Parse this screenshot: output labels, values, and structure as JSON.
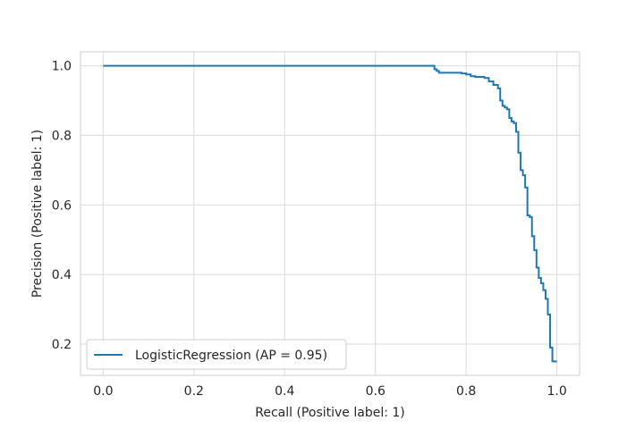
{
  "chart_data": {
    "type": "line",
    "title": "",
    "xlabel": "Recall (Positive label: 1)",
    "ylabel": "Precision (Positive label: 1)",
    "xlim": [
      -0.05,
      1.05
    ],
    "ylim": [
      0.11,
      1.04
    ],
    "xticks": [
      0.0,
      0.2,
      0.4,
      0.6,
      0.8,
      1.0
    ],
    "xtick_labels": [
      "0.0",
      "0.2",
      "0.4",
      "0.6",
      "0.8",
      "1.0"
    ],
    "yticks": [
      0.2,
      0.4,
      0.6,
      0.8,
      1.0
    ],
    "ytick_labels": [
      "0.2",
      "0.4",
      "0.6",
      "0.8",
      "1.0"
    ],
    "grid": true,
    "legend_position": "lower-left",
    "series": [
      {
        "name": "LogisticRegression (AP = 0.95)",
        "color": "#1f77b4",
        "drawstyle": "steps-post",
        "x": [
          0.0,
          0.73,
          0.735,
          0.74,
          0.79,
          0.8,
          0.81,
          0.82,
          0.84,
          0.85,
          0.86,
          0.87,
          0.875,
          0.88,
          0.885,
          0.89,
          0.895,
          0.9,
          0.905,
          0.91,
          0.915,
          0.92,
          0.925,
          0.93,
          0.935,
          0.94,
          0.945,
          0.95,
          0.955,
          0.96,
          0.965,
          0.97,
          0.975,
          0.98,
          0.985,
          0.99,
          0.995,
          1.0
        ],
        "y": [
          1.0,
          0.99,
          0.985,
          0.98,
          0.978,
          0.975,
          0.97,
          0.968,
          0.965,
          0.955,
          0.945,
          0.935,
          0.9,
          0.885,
          0.88,
          0.875,
          0.85,
          0.84,
          0.835,
          0.81,
          0.75,
          0.7,
          0.685,
          0.65,
          0.57,
          0.565,
          0.51,
          0.47,
          0.42,
          0.39,
          0.375,
          0.355,
          0.33,
          0.285,
          0.19,
          0.15,
          0.15,
          0.15
        ]
      }
    ]
  }
}
